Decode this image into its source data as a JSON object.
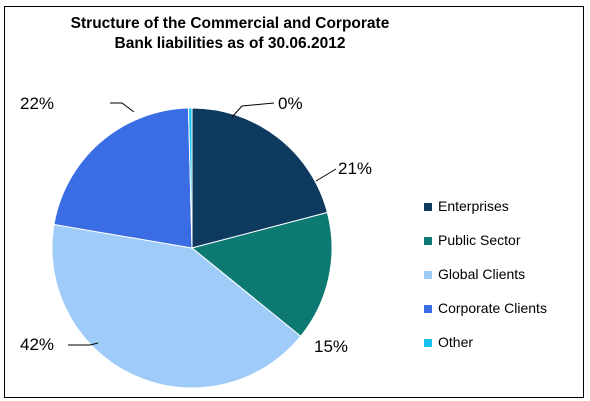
{
  "chart_data": {
    "type": "pie",
    "title": [
      "Structure of the Commercial  and Corporate",
      "Bank liabilities as of 30.06.2012"
    ],
    "categories": [
      "Enterprises",
      "Public Sector",
      "Global Clients",
      "Corporate Clients",
      "Other"
    ],
    "values": [
      21,
      15,
      42,
      22,
      0.4
    ],
    "data_labels": [
      "21%",
      "15%",
      "42%",
      "22%",
      "0%"
    ],
    "colors": [
      "#0f3a60",
      "#0c7a72",
      "#9ecbf7",
      "#3a6de4",
      "#19c2ee"
    ],
    "legend_position": "right",
    "start_angle_deg": 0,
    "direction": "clockwise"
  }
}
